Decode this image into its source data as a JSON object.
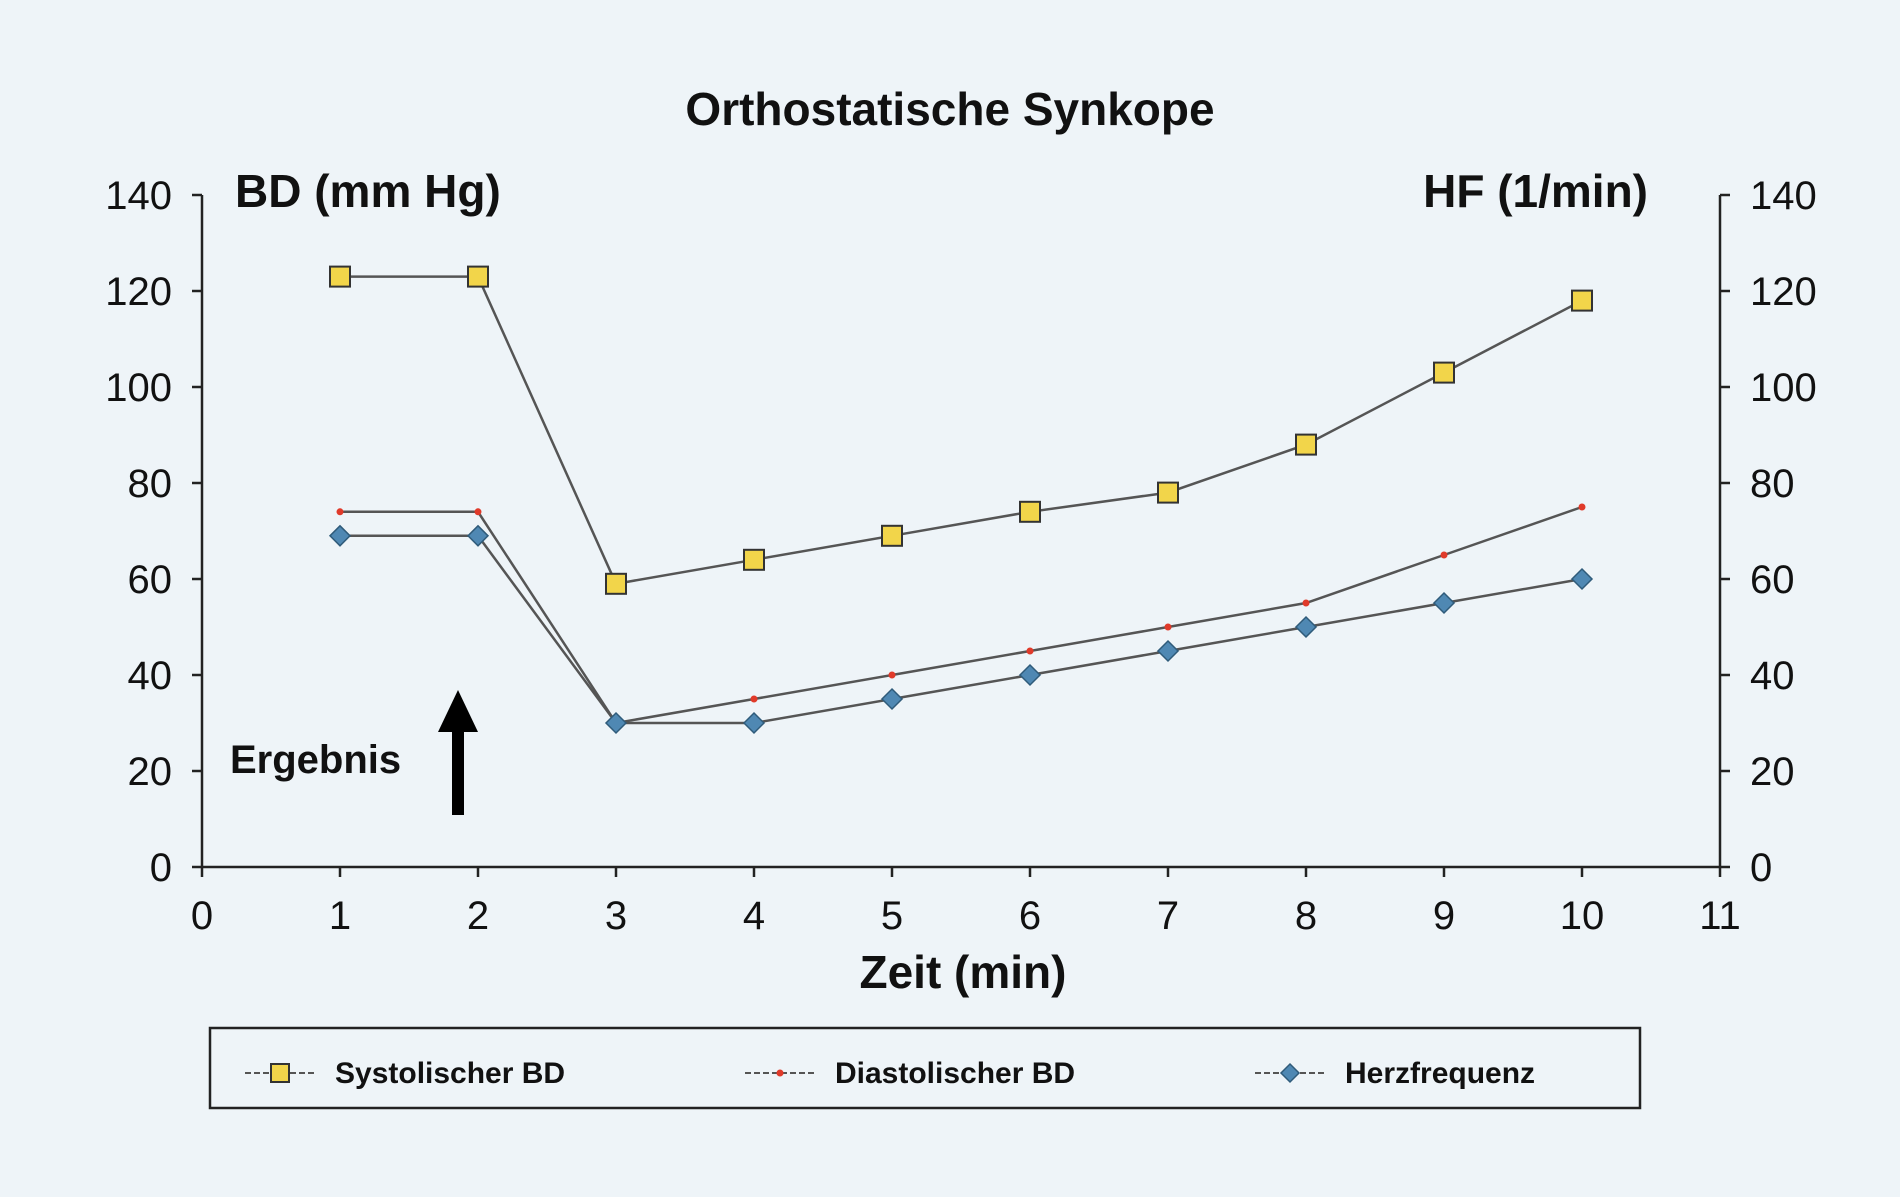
{
  "chart_data": {
    "type": "line",
    "title": "Orthostatische Synkope",
    "ylabel_left": "BD (mm Hg)",
    "ylabel_right": "HF (1/min)",
    "xlabel": "Zeit (min)",
    "annotation": "Ergebnis",
    "xlim": [
      0,
      11
    ],
    "ylim": [
      0,
      140
    ],
    "x_ticks": [
      "0",
      "1",
      "2",
      "3",
      "4",
      "5",
      "6",
      "7",
      "8",
      "9",
      "10",
      "11"
    ],
    "y_ticks": [
      "0",
      "20",
      "40",
      "60",
      "80",
      "100",
      "120",
      "140"
    ],
    "x": [
      1,
      2,
      3,
      4,
      5,
      6,
      7,
      8,
      9,
      10
    ],
    "series": [
      {
        "name": "Systolischer BD",
        "marker": "square",
        "color": "#f2d54a",
        "values": [
          123,
          123,
          59,
          64,
          69,
          74,
          78,
          88,
          103,
          118
        ]
      },
      {
        "name": "Diastolischer BD",
        "marker": "dot",
        "color": "#e03a2a",
        "values": [
          74,
          74,
          30,
          35,
          40,
          45,
          50,
          55,
          65,
          75
        ]
      },
      {
        "name": "Herzfrequenz",
        "marker": "diamond",
        "color": "#4f88b3",
        "values": [
          69,
          69,
          30,
          30,
          35,
          40,
          45,
          50,
          55,
          60
        ]
      }
    ],
    "legend_position": "bottom",
    "grid": false,
    "colors": {
      "background": "#eef4f8",
      "axis": "#222222",
      "line": "#555555"
    }
  }
}
